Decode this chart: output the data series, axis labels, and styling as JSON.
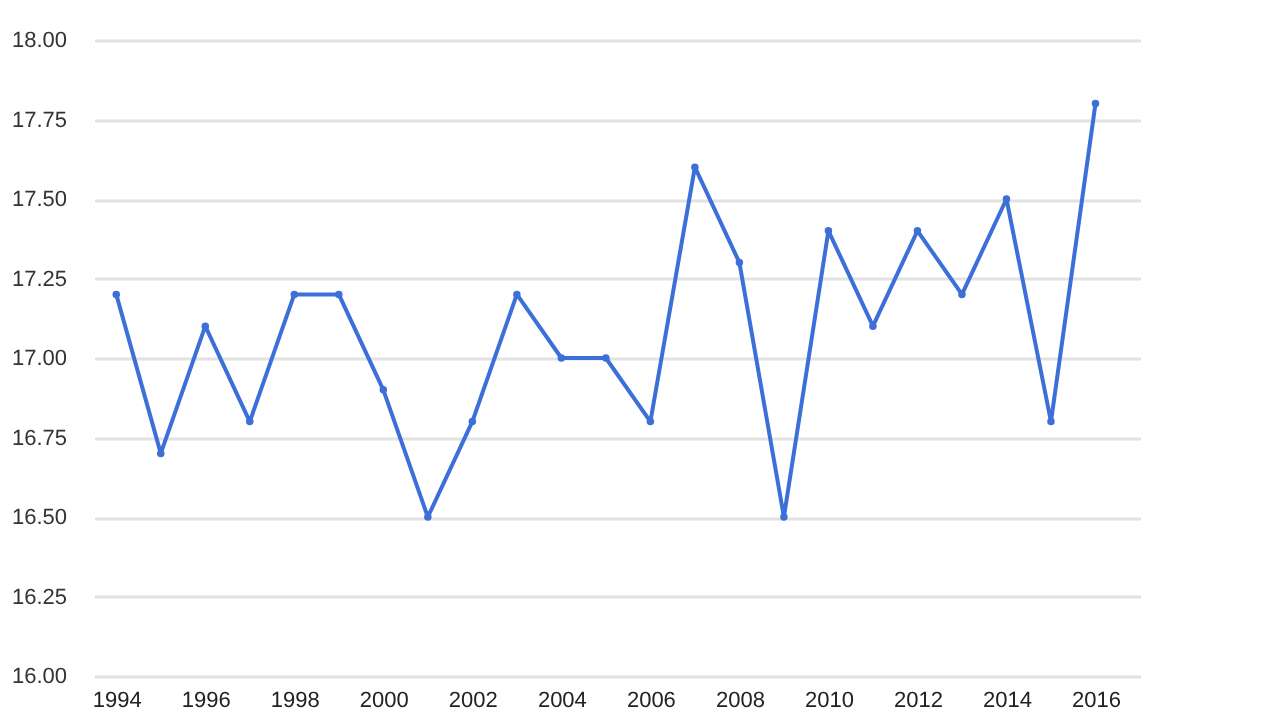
{
  "chart_data": {
    "type": "line",
    "x": [
      1994,
      1995,
      1996,
      1997,
      1998,
      1999,
      2000,
      2001,
      2002,
      2003,
      2004,
      2005,
      2006,
      2007,
      2008,
      2009,
      2010,
      2011,
      2012,
      2013,
      2014,
      2015,
      2016
    ],
    "series": [
      {
        "color": "#3c6fd8",
        "values": [
          17.2,
          16.7,
          17.1,
          16.8,
          17.2,
          17.2,
          16.9,
          16.5,
          16.8,
          17.2,
          17.0,
          17.0,
          16.8,
          17.6,
          17.3,
          16.5,
          17.4,
          17.1,
          17.4,
          17.2,
          17.5,
          16.8,
          17.8
        ]
      }
    ],
    "xlim": [
      1993.5,
      2017
    ],
    "xticks": [
      1994,
      1996,
      1998,
      2000,
      2002,
      2004,
      2006,
      2008,
      2010,
      2012,
      2014,
      2016
    ],
    "ylim": [
      16,
      18
    ],
    "yticks": [
      {
        "value": 16,
        "label": "16.00"
      },
      {
        "value": 16.25,
        "label": "16.25"
      },
      {
        "value": 16.5,
        "label": "16.50"
      },
      {
        "value": 16.75,
        "label": "16.75"
      },
      {
        "value": 17,
        "label": "17.00"
      },
      {
        "value": 17.25,
        "label": "17.25"
      },
      {
        "value": 17.5,
        "label": "17.50"
      },
      {
        "value": 17.75,
        "label": "17.75"
      },
      {
        "value": 18,
        "label": "18.00"
      }
    ],
    "grid": "y",
    "marker": "circle",
    "line_style": "solid"
  }
}
